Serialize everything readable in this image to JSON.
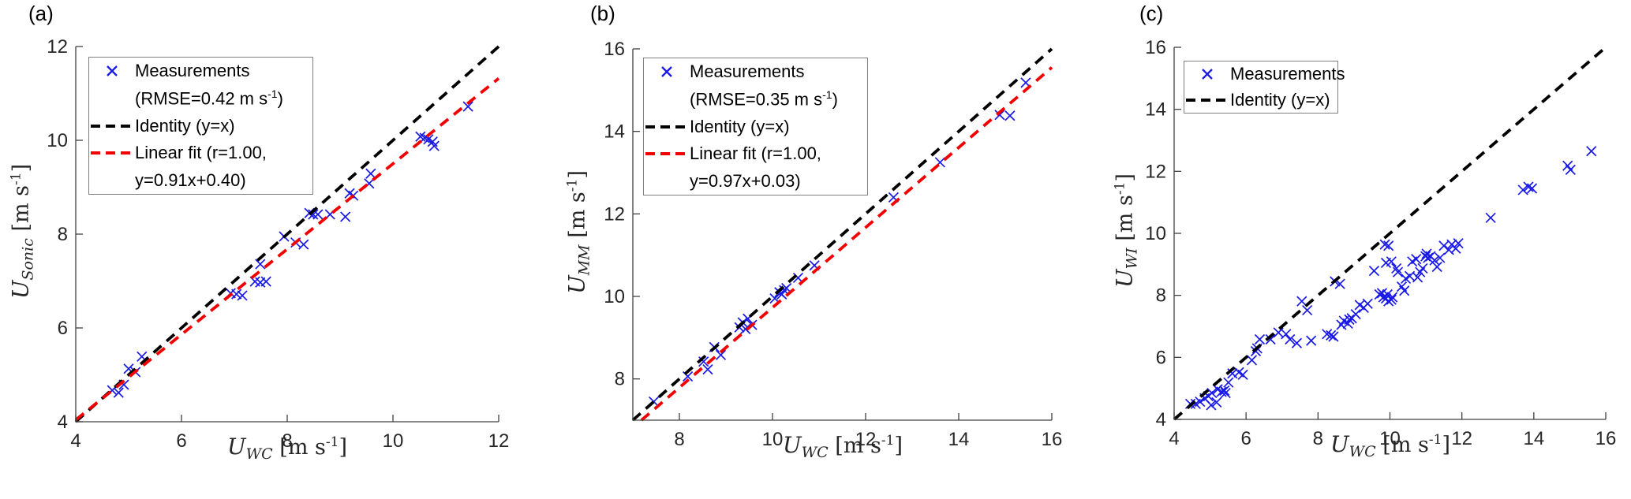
{
  "figure": {
    "background_color": "#ffffff",
    "marker_color": "#1a1ae6",
    "identity_color": "#000000",
    "fit_color": "#f20000",
    "axis_color": "#404040",
    "tick_label_color": "#262626"
  },
  "chart_data": [
    {
      "id": "a",
      "tag": "(a)",
      "type": "scatter",
      "title": "",
      "xlabel_parts": {
        "sym": "U",
        "sub": "WC",
        "unit_pre": " [m s",
        "sup": "-1",
        "unit_post": "]"
      },
      "ylabel_parts": {
        "sym": "U",
        "sub": "Sonic",
        "unit_pre": " [m s",
        "sup": "-1",
        "unit_post": "]"
      },
      "xlim": [
        4,
        12
      ],
      "ylim": [
        4,
        12
      ],
      "xticks": [
        4,
        6,
        8,
        10,
        12
      ],
      "yticks": [
        4,
        6,
        8,
        10,
        12
      ],
      "grid": false,
      "legend_position": "top-left",
      "stats": {
        "rmse": 0.42,
        "r": 1.0,
        "fit_equation": "y=0.91x+0.40"
      },
      "legend": [
        {
          "glyph": "x-marker",
          "color": "#1a1ae6",
          "line1": "Measurements",
          "line2_pre": "(RMSE=0.42 m s",
          "line2_sup": "-1",
          "line2_post": ")"
        },
        {
          "glyph": "dash",
          "color": "#000000",
          "line1": "Identity (y=x)"
        },
        {
          "glyph": "dash",
          "color": "#f20000",
          "line1": "Linear fit (r=1.00,",
          "line2_pre": "y=0.91x+0.40)",
          "line2_sup": "",
          "line2_post": ""
        }
      ],
      "series": [
        {
          "name": "Measurements",
          "type": "scatter",
          "marker": "x",
          "color": "#1a1ae6",
          "points": [
            [
              4.69,
              4.67
            ],
            [
              4.81,
              4.62
            ],
            [
              4.91,
              4.79
            ],
            [
              5.0,
              5.13
            ],
            [
              5.13,
              5.06
            ],
            [
              5.25,
              5.39
            ],
            [
              6.93,
              6.74
            ],
            [
              7.04,
              6.72
            ],
            [
              7.15,
              6.69
            ],
            [
              7.39,
              6.99
            ],
            [
              7.49,
              6.97
            ],
            [
              7.6,
              6.99
            ],
            [
              7.49,
              7.36
            ],
            [
              7.94,
              7.95
            ],
            [
              8.16,
              7.82
            ],
            [
              8.31,
              7.78
            ],
            [
              8.42,
              8.45
            ],
            [
              8.49,
              8.42
            ],
            [
              8.58,
              8.42
            ],
            [
              8.81,
              8.42
            ],
            [
              9.1,
              8.37
            ],
            [
              9.18,
              8.87
            ],
            [
              9.25,
              8.82
            ],
            [
              9.55,
              9.08
            ],
            [
              9.58,
              9.29
            ],
            [
              10.52,
              10.08
            ],
            [
              10.6,
              10.05
            ],
            [
              10.67,
              10.02
            ],
            [
              10.75,
              9.97
            ],
            [
              10.78,
              9.88
            ],
            [
              11.42,
              10.72
            ]
          ]
        },
        {
          "name": "Identity (y=x)",
          "type": "line",
          "style": "dashed",
          "color": "#000000",
          "slope": 1,
          "intercept": 0
        },
        {
          "name": "Linear fit",
          "type": "line",
          "style": "dashed",
          "color": "#f20000",
          "slope": 0.91,
          "intercept": 0.4
        }
      ]
    },
    {
      "id": "b",
      "tag": "(b)",
      "type": "scatter",
      "title": "",
      "xlabel_parts": {
        "sym": "U",
        "sub": "WC",
        "unit_pre": " [m s",
        "sup": "-1",
        "unit_post": "]"
      },
      "ylabel_parts": {
        "sym": "U",
        "sub": "MM",
        "unit_pre": " [m s",
        "sup": "-1",
        "unit_post": "]"
      },
      "xlim": [
        7,
        16
      ],
      "ylim": [
        7,
        16
      ],
      "xticks": [
        8,
        10,
        12,
        14,
        16
      ],
      "yticks": [
        8,
        10,
        12,
        14,
        16
      ],
      "grid": false,
      "legend_position": "top-left",
      "stats": {
        "rmse": 0.35,
        "r": 1.0,
        "fit_equation": "y=0.97x+0.03"
      },
      "legend": [
        {
          "glyph": "x-marker",
          "color": "#1a1ae6",
          "line1": "Measurements",
          "line2_pre": "(RMSE=0.35 m s",
          "line2_sup": "-1",
          "line2_post": ")"
        },
        {
          "glyph": "dash",
          "color": "#000000",
          "line1": "Identity (y=x)"
        },
        {
          "glyph": "dash",
          "color": "#f20000",
          "line1": "Linear fit (r=1.00,",
          "line2_pre": "y=0.97x+0.03)",
          "line2_sup": "",
          "line2_post": ""
        }
      ],
      "series": [
        {
          "name": "Measurements",
          "type": "scatter",
          "marker": "x",
          "color": "#1a1ae6",
          "points": [
            [
              7.45,
              7.45
            ],
            [
              8.18,
              8.06
            ],
            [
              8.52,
              8.42
            ],
            [
              8.61,
              8.23
            ],
            [
              8.75,
              8.77
            ],
            [
              8.89,
              8.58
            ],
            [
              9.29,
              9.25
            ],
            [
              9.36,
              9.37
            ],
            [
              9.42,
              9.21
            ],
            [
              9.47,
              9.46
            ],
            [
              9.56,
              9.31
            ],
            [
              10.05,
              9.95
            ],
            [
              10.15,
              10.1
            ],
            [
              10.2,
              10.05
            ],
            [
              10.25,
              10.15
            ],
            [
              10.3,
              10.2
            ],
            [
              10.55,
              10.45
            ],
            [
              10.9,
              10.75
            ],
            [
              12.6,
              12.4
            ],
            [
              13.6,
              13.25
            ],
            [
              14.88,
              14.4
            ],
            [
              15.1,
              14.38
            ],
            [
              15.44,
              15.18
            ]
          ]
        },
        {
          "name": "Identity (y=x)",
          "type": "line",
          "style": "dashed",
          "color": "#000000",
          "slope": 1,
          "intercept": 0
        },
        {
          "name": "Linear fit",
          "type": "line",
          "style": "dashed",
          "color": "#f20000",
          "slope": 0.97,
          "intercept": 0.03
        }
      ]
    },
    {
      "id": "c",
      "tag": "(c)",
      "type": "scatter",
      "title": "",
      "xlabel_parts": {
        "sym": "U",
        "sub": "WC",
        "unit_pre": " [m s",
        "sup": "-1",
        "unit_post": "]"
      },
      "ylabel_parts": {
        "sym": "U",
        "sub": "WI",
        "unit_pre": " [m s",
        "sup": "-1",
        "unit_post": "]"
      },
      "xlim": [
        4,
        16
      ],
      "ylim": [
        4,
        16
      ],
      "xticks": [
        4,
        6,
        8,
        10,
        12,
        14,
        16
      ],
      "yticks": [
        4,
        6,
        8,
        10,
        12,
        14,
        16
      ],
      "grid": false,
      "legend_position": "top-left",
      "legend": [
        {
          "glyph": "x-marker",
          "color": "#1a1ae6",
          "line1": "Measurements"
        },
        {
          "glyph": "dash",
          "color": "#000000",
          "line1": "Identity (y=x)"
        }
      ],
      "series": [
        {
          "name": "Measurements",
          "type": "scatter",
          "marker": "x",
          "color": "#1a1ae6",
          "points": [
            [
              4.45,
              4.5
            ],
            [
              4.6,
              4.5
            ],
            [
              4.72,
              4.57
            ],
            [
              4.85,
              4.68
            ],
            [
              4.95,
              4.75
            ],
            [
              5.03,
              4.46
            ],
            [
              5.05,
              4.85
            ],
            [
              5.18,
              4.55
            ],
            [
              5.21,
              4.97
            ],
            [
              5.32,
              4.89
            ],
            [
              5.4,
              4.93
            ],
            [
              5.43,
              4.85
            ],
            [
              5.51,
              5.19
            ],
            [
              5.62,
              5.48
            ],
            [
              5.8,
              5.52
            ],
            [
              5.91,
              5.44
            ],
            [
              6.16,
              5.91
            ],
            [
              6.27,
              6.2
            ],
            [
              6.31,
              6.29
            ],
            [
              6.38,
              6.58
            ],
            [
              6.68,
              6.58
            ],
            [
              6.9,
              6.8
            ],
            [
              7.11,
              6.75
            ],
            [
              7.22,
              6.58
            ],
            [
              7.41,
              6.46
            ],
            [
              7.55,
              7.81
            ],
            [
              7.7,
              7.52
            ],
            [
              7.81,
              6.54
            ],
            [
              8.25,
              6.75
            ],
            [
              8.36,
              6.71
            ],
            [
              8.43,
              6.67
            ],
            [
              8.47,
              8.45
            ],
            [
              8.61,
              8.37
            ],
            [
              8.65,
              7.05
            ],
            [
              8.72,
              7.18
            ],
            [
              8.83,
              7.09
            ],
            [
              8.87,
              7.22
            ],
            [
              8.94,
              7.26
            ],
            [
              9.05,
              7.39
            ],
            [
              9.16,
              7.69
            ],
            [
              9.27,
              7.6
            ],
            [
              9.38,
              7.73
            ],
            [
              9.56,
              8.79
            ],
            [
              9.71,
              8.03
            ],
            [
              9.78,
              8.07
            ],
            [
              9.82,
              7.94
            ],
            [
              9.89,
              7.9
            ],
            [
              9.93,
              8.03
            ],
            [
              9.96,
              7.81
            ],
            [
              10.04,
              7.86
            ],
            [
              10.07,
              7.94
            ],
            [
              9.86,
              9.64
            ],
            [
              9.96,
              9.6
            ],
            [
              9.89,
              9.05
            ],
            [
              10.04,
              9.09
            ],
            [
              10.18,
              8.87
            ],
            [
              10.22,
              8.75
            ],
            [
              10.33,
              8.28
            ],
            [
              10.4,
              8.15
            ],
            [
              10.44,
              8.54
            ],
            [
              10.55,
              8.62
            ],
            [
              10.62,
              9.09
            ],
            [
              10.73,
              9.17
            ],
            [
              10.77,
              8.58
            ],
            [
              10.84,
              8.75
            ],
            [
              10.91,
              8.87
            ],
            [
              10.99,
              9.26
            ],
            [
              11.02,
              9.34
            ],
            [
              11.06,
              9.21
            ],
            [
              11.13,
              9.26
            ],
            [
              11.24,
              9.13
            ],
            [
              11.31,
              8.92
            ],
            [
              11.39,
              9.21
            ],
            [
              11.5,
              9.6
            ],
            [
              11.64,
              9.47
            ],
            [
              11.72,
              9.64
            ],
            [
              11.83,
              9.51
            ],
            [
              11.9,
              9.68
            ],
            [
              12.8,
              10.5
            ],
            [
              13.7,
              11.4
            ],
            [
              13.85,
              11.5
            ],
            [
              13.95,
              11.45
            ],
            [
              14.94,
              12.18
            ],
            [
              15.02,
              12.05
            ],
            [
              15.6,
              12.65
            ]
          ]
        },
        {
          "name": "Identity (y=x)",
          "type": "line",
          "style": "dashed",
          "color": "#000000",
          "slope": 1,
          "intercept": 0
        }
      ]
    }
  ]
}
